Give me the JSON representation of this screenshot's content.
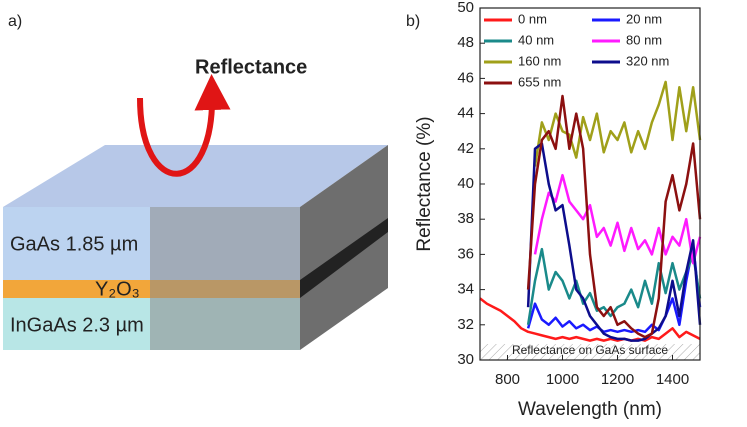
{
  "panel_a": {
    "label": "a)",
    "arrow_label": "Reflectance",
    "layers": [
      "GaAs 1.85 µm",
      "Y₂O₃",
      "InGaAs 2.3 µm"
    ]
  },
  "panel_b_label": "b)",
  "chart_data": {
    "type": "line",
    "xlabel": "Wavelength (nm)",
    "ylabel": "Reflectance (%)",
    "annotation": "Reflectance on GaAs surface",
    "xlim": [
      700,
      1500
    ],
    "xticks": [
      800,
      1000,
      1200,
      1400
    ],
    "ylim": [
      30,
      50
    ],
    "yticks": [
      30,
      32,
      34,
      36,
      38,
      40,
      42,
      44,
      46,
      48,
      50
    ],
    "grid": false,
    "legend": "upper left",
    "x": [
      700,
      725,
      750,
      775,
      800,
      825,
      850,
      875,
      900,
      925,
      950,
      975,
      1000,
      1025,
      1050,
      1075,
      1100,
      1125,
      1150,
      1175,
      1200,
      1225,
      1250,
      1275,
      1300,
      1325,
      1350,
      1375,
      1400,
      1425,
      1450,
      1475,
      1500
    ],
    "series": [
      {
        "name": "0 nm",
        "color": "#ff1a1a",
        "values": [
          33.5,
          33.2,
          33.0,
          32.8,
          32.5,
          32.2,
          31.8,
          31.6,
          31.5,
          31.4,
          31.3,
          31.2,
          31.3,
          31.2,
          31.3,
          31.2,
          31.1,
          31.2,
          31.1,
          31.2,
          31.1,
          31.2,
          31.1,
          31.2,
          31.1,
          31.3,
          31.2,
          31.5,
          31.8,
          31.3,
          31.6,
          31.4,
          31.2
        ]
      },
      {
        "name": "20 nm",
        "color": "#1a1aff",
        "values": [
          null,
          null,
          null,
          null,
          null,
          null,
          null,
          31.8,
          33.2,
          32.3,
          32.0,
          32.4,
          31.9,
          32.2,
          31.8,
          32.0,
          31.7,
          31.9,
          31.6,
          31.7,
          31.6,
          31.7,
          31.6,
          31.7,
          31.6,
          32.0,
          31.7,
          32.5,
          33.5,
          32.0,
          34.5,
          36.5,
          33.0
        ]
      },
      {
        "name": "40 nm",
        "color": "#1a8a8a",
        "values": [
          null,
          null,
          null,
          null,
          null,
          null,
          null,
          32.0,
          34.5,
          36.3,
          34.0,
          35.0,
          34.5,
          33.5,
          34.5,
          33.2,
          33.8,
          32.8,
          33.0,
          32.5,
          33.0,
          33.2,
          34.0,
          33.0,
          34.5,
          33.2,
          35.5,
          33.8,
          35.5,
          34.0,
          35.0,
          36.0,
          33.5
        ]
      },
      {
        "name": "80 nm",
        "color": "#ff1aff",
        "values": [
          null,
          null,
          null,
          null,
          null,
          null,
          null,
          null,
          36.0,
          38.0,
          39.5,
          39.0,
          40.5,
          39.0,
          38.5,
          38.0,
          38.8,
          37.0,
          37.5,
          36.5,
          37.8,
          36.2,
          37.5,
          36.3,
          36.8,
          36.0,
          37.5,
          36.0,
          37.0,
          36.5,
          38.0,
          35.5,
          37.0
        ]
      },
      {
        "name": "160 nm",
        "color": "#a0a01a",
        "values": [
          null,
          null,
          null,
          null,
          null,
          null,
          null,
          null,
          41.0,
          43.5,
          42.5,
          44.0,
          43.0,
          42.8,
          41.5,
          43.8,
          42.5,
          44.0,
          41.8,
          43.0,
          42.5,
          43.5,
          41.8,
          43.0,
          42.0,
          43.5,
          44.5,
          45.8,
          42.5,
          45.5,
          43.0,
          45.5,
          42.5
        ]
      },
      {
        "name": "320 nm",
        "color": "#0d0d8c",
        "values": [
          null,
          null,
          null,
          null,
          null,
          null,
          null,
          33.0,
          42.0,
          42.3,
          40.0,
          38.5,
          38.8,
          36.5,
          34.0,
          33.5,
          32.5,
          32.0,
          31.5,
          31.3,
          31.2,
          31.2,
          31.1,
          31.1,
          31.2,
          31.5,
          31.8,
          32.5,
          34.5,
          32.5,
          35.0,
          36.8,
          32.0
        ]
      },
      {
        "name": "655 nm",
        "color": "#8c1010",
        "values": [
          null,
          null,
          null,
          null,
          null,
          null,
          null,
          34.0,
          40.0,
          42.5,
          43.0,
          42.0,
          45.0,
          42.0,
          44.0,
          42.0,
          36.0,
          33.0,
          32.5,
          33.0,
          32.0,
          32.2,
          31.8,
          31.5,
          31.3,
          31.5,
          33.5,
          39.0,
          40.5,
          38.5,
          40.0,
          42.3,
          38.0
        ]
      }
    ]
  }
}
